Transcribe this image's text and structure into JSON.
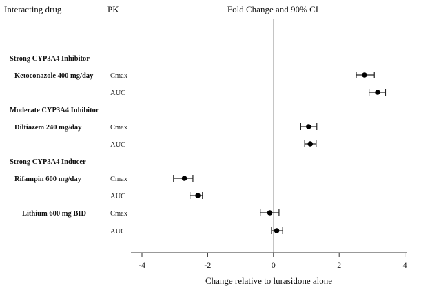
{
  "chart_data": {
    "type": "forest",
    "title": "Fold Change and 90% CI",
    "column_headers": {
      "drug": "Interacting drug",
      "pk": "PK"
    },
    "xlabel": "Change relative to lurasidone alone",
    "xlim": [
      -4.3,
      4
    ],
    "xticks": [
      -4,
      -2,
      0,
      2,
      4
    ],
    "xtick_labels": [
      "-4",
      "-2",
      "0",
      "2",
      "4"
    ],
    "reference_line": 0,
    "rows": [
      {
        "kind": "group",
        "label": "Strong CYP3A4 Inhibitor"
      },
      {
        "kind": "drug",
        "label": "Ketoconazole 400 mg/day",
        "pk": "Cmax",
        "estimate": 2.77,
        "lower": 2.52,
        "upper": 3.07
      },
      {
        "kind": "pk",
        "pk": "AUC",
        "estimate": 3.17,
        "lower": 2.91,
        "upper": 3.41
      },
      {
        "kind": "group",
        "label": "Moderate CYP3A4 Inhibitor"
      },
      {
        "kind": "drug",
        "label": "Diltiazem 240 mg/day",
        "pk": "Cmax",
        "estimate": 1.07,
        "lower": 0.83,
        "upper": 1.32
      },
      {
        "kind": "pk",
        "pk": "AUC",
        "estimate": 1.12,
        "lower": 0.95,
        "upper": 1.3
      },
      {
        "kind": "group",
        "label": "Strong CYP3A4 Inducer"
      },
      {
        "kind": "drug",
        "label": "Rifampin 600 mg/day",
        "pk": "Cmax",
        "estimate": -2.71,
        "lower": -3.04,
        "upper": -2.45
      },
      {
        "kind": "pk",
        "pk": "AUC",
        "estimate": -2.3,
        "lower": -2.54,
        "upper": -2.16
      },
      {
        "kind": "drug",
        "label": "Lithium 600 mg BID",
        "pk": "Cmax",
        "estimate": -0.11,
        "lower": -0.4,
        "upper": 0.17
      },
      {
        "kind": "pk",
        "pk": "AUC",
        "estimate": 0.1,
        "lower": -0.06,
        "upper": 0.28
      }
    ]
  }
}
